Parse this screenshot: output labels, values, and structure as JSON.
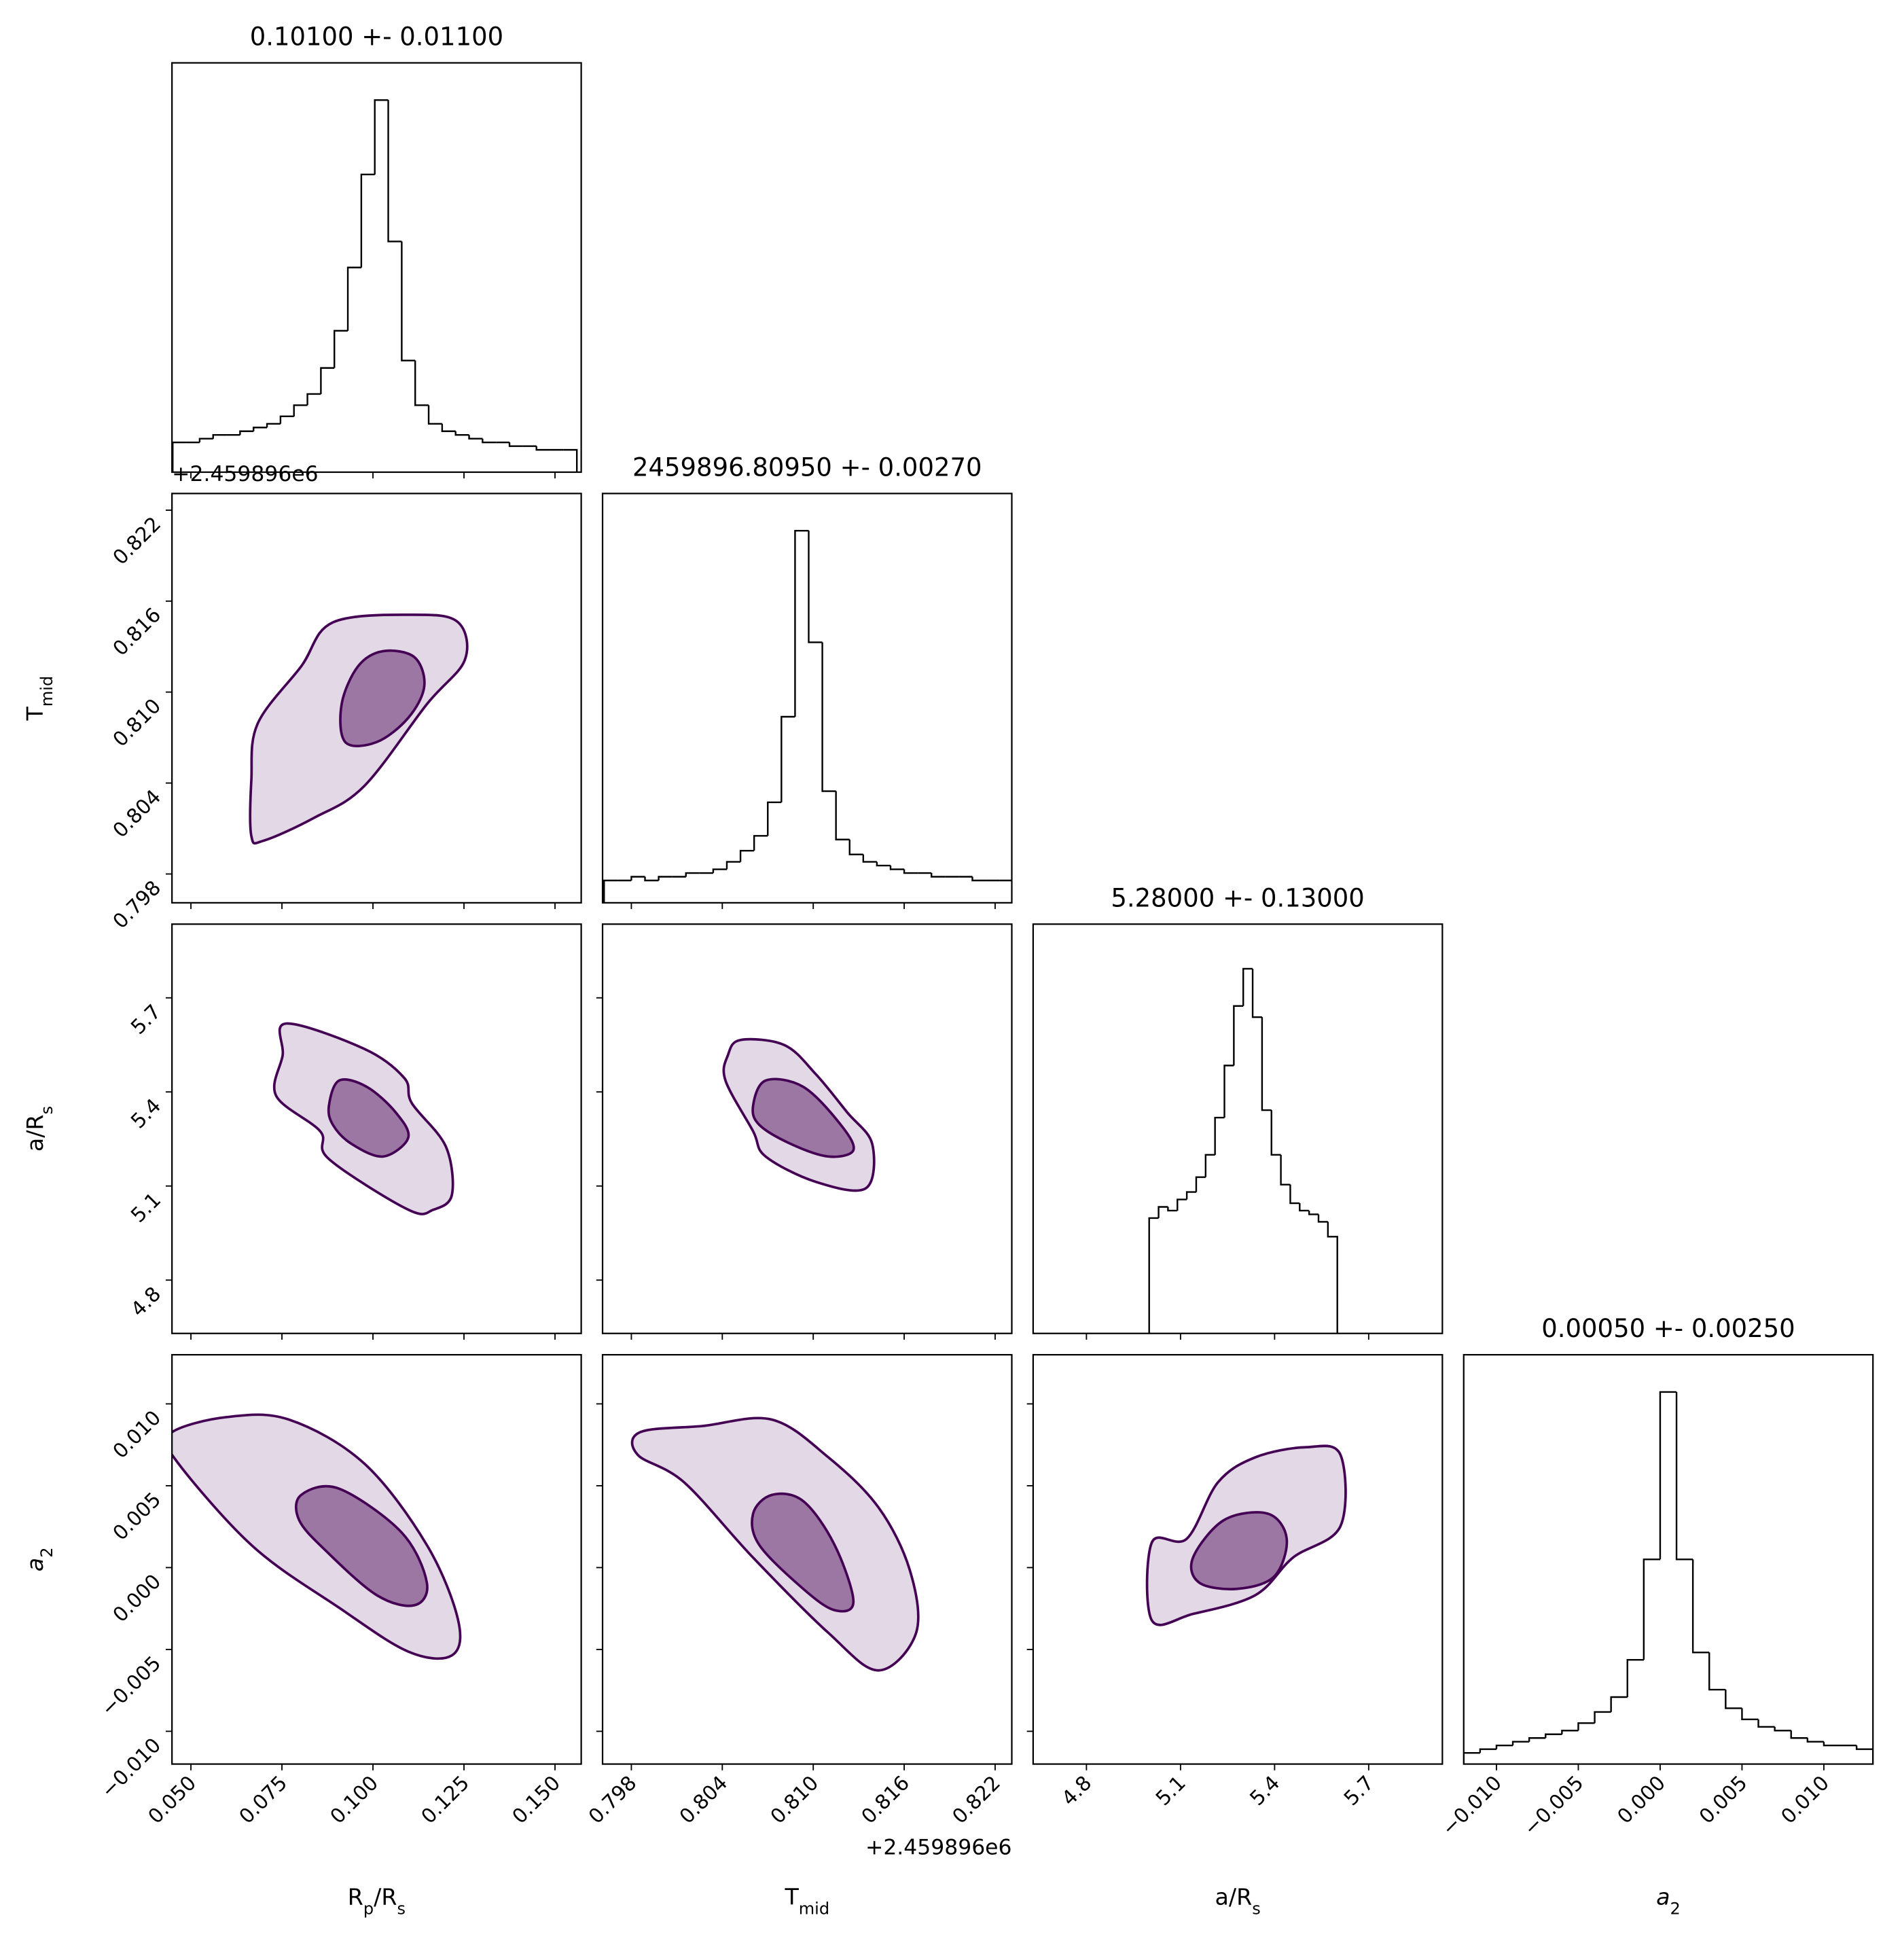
{
  "chart_data": {
    "type": "corner",
    "contour_color": "#440154",
    "hist_color": "#000000",
    "parameters": [
      {
        "label": [
          {
            "text": "R"
          },
          {
            "text": "p",
            "sub": true
          },
          {
            "text": "/R"
          },
          {
            "text": "s",
            "sub": true
          }
        ],
        "title": "0.10100 +- 0.01100",
        "lim": [
          0.0448,
          0.1572
        ],
        "ticks": [
          {
            "value": 0.05,
            "label": "0.050"
          },
          0.075,
          {
            "value": 0.1,
            "label": "0.100"
          },
          0.125,
          {
            "value": 0.15,
            "label": "0.150"
          }
        ],
        "hist": {
          "bins": [
            0.045,
            0.0487,
            0.0524,
            0.0561,
            0.0598,
            0.0635,
            0.0672,
            0.0709,
            0.0746,
            0.0783,
            0.082,
            0.0857,
            0.0894,
            0.0931,
            0.0968,
            0.1005,
            0.1042,
            0.1079,
            0.1116,
            0.1153,
            0.119,
            0.1227,
            0.1264,
            0.1301,
            0.1338,
            0.1375,
            0.1412,
            0.1449,
            0.1486,
            0.1523,
            0.156
          ],
          "values": [
            8,
            8,
            9,
            10,
            10,
            11,
            12,
            13,
            15,
            18,
            21,
            28,
            38,
            55,
            80,
            100,
            62,
            30,
            18,
            13,
            11,
            10,
            9,
            8,
            8,
            7,
            7,
            6,
            6,
            6
          ],
          "ylim": [
            0,
            110
          ]
        },
        "contours": []
      },
      {
        "label": [
          {
            "text": "T"
          },
          {
            "text": "mid",
            "sub": true
          }
        ],
        "title": "2459896.80950 +- 0.00270",
        "offset_text": "+2.459896e6",
        "lim": [
          0.7961,
          0.8231
        ],
        "ticks": [
          0.798,
          0.804,
          {
            "value": 0.81,
            "label": "0.810"
          },
          0.816,
          0.822
        ],
        "hist": {
          "bins": [
            0.7962,
            0.7971,
            0.798,
            0.7989,
            0.7998,
            0.8007,
            0.8016,
            0.8025,
            0.8034,
            0.8043,
            0.8052,
            0.8061,
            0.807,
            0.8079,
            0.8088,
            0.8097,
            0.8106,
            0.8115,
            0.8124,
            0.8133,
            0.8142,
            0.8151,
            0.816,
            0.8169,
            0.8178,
            0.8187,
            0.8196,
            0.8205,
            0.8214,
            0.8223,
            0.8232
          ],
          "values": [
            6,
            6,
            7,
            6,
            7,
            7,
            8,
            8,
            9,
            11,
            14,
            18,
            27,
            50,
            100,
            70,
            30,
            17,
            13,
            11,
            10,
            9,
            8,
            8,
            7,
            7,
            7,
            6,
            6,
            6
          ],
          "ylim": [
            0,
            110
          ]
        },
        "contours": [
          [
            {
              "x": [
                0.0924,
                0.0914,
                0.0959,
                0.1028,
                0.1114,
                0.1141,
                0.1097,
                0.101
              ],
              "y": [
                0.8067,
                0.8092,
                0.8117,
                0.8127,
                0.8123,
                0.8104,
                0.8083,
                0.8067
              ]
            },
            {
              "x": [
                0.0666,
                0.0666,
                0.0683,
                0.0803,
                0.089,
                0.1114,
                0.1234,
                0.1252,
                0.1148,
                0.0976,
                0.0838,
                0.07
              ],
              "y": [
                0.8005,
                0.8042,
                0.8079,
                0.8117,
                0.8146,
                0.8151,
                0.8146,
                0.8121,
                0.8092,
                0.8038,
                0.8017,
                0.8002
              ]
            }
          ]
        ]
      },
      {
        "label": [
          {
            "text": "a/R"
          },
          {
            "text": "s",
            "sub": true
          }
        ],
        "title": "5.28000 +- 0.13000",
        "lim": [
          4.63,
          5.935
        ],
        "ticks": [
          4.8,
          5.1,
          5.4,
          5.7
        ],
        "hist": {
          "bins": [
            5,
            5.03,
            5.06,
            5.09,
            5.12,
            5.15,
            5.18,
            5.21,
            5.24,
            5.27,
            5.3,
            5.33,
            5.36,
            5.39,
            5.42,
            5.45,
            5.48,
            5.51,
            5.54,
            5.57,
            5.6
          ],
          "values": [
            31,
            34,
            33,
            36,
            38,
            42,
            48,
            58,
            72,
            88,
            98,
            85,
            60,
            48,
            40,
            35,
            33,
            32,
            30,
            26
          ],
          "ylim": [
            0,
            110
          ]
        },
        "contours": [
          [
            {
              "x": [
                0.0879,
                0.0907,
                0.0983,
                0.1062,
                0.1097,
                0.1028,
                0.0941,
                0.089
              ],
              "y": [
                5.3556,
                5.4363,
                5.4162,
                5.3354,
                5.2546,
                5.1941,
                5.2344,
                5.295
              ]
            },
            {
              "x": [
                0.0762,
                0.0976,
                0.1086,
                0.1107,
                0.12,
                0.1217,
                0.1166,
                0.1097,
                0.0879,
                0.0855,
                0.0734,
                0.0752
              ],
              "y": [
                5.6181,
                5.5373,
                5.4444,
                5.3637,
                5.2264,
                5.0729,
                5.0245,
                5.0245,
                5.186,
                5.2748,
                5.3879,
                5.5171
              ]
            }
          ],
          [
            {
              "x": [
                0.80603,
                0.80686,
                0.80934,
                0.81182,
                0.81265,
                0.81099,
                0.80851,
                0.80644
              ],
              "y": [
                5.3556,
                5.4363,
                5.4162,
                5.295,
                5.2143,
                5.1941,
                5.2344,
                5.295
              ]
            },
            {
              "x": [
                0.80437,
                0.8052,
                0.8081,
                0.81017,
                0.81223,
                0.81389,
                0.81348,
                0.81017,
                0.80686,
                0.80603,
                0.80421
              ],
              "y": [
                5.5171,
                5.5656,
                5.5494,
                5.4565,
                5.3354,
                5.2344,
                5.0931,
                5.1133,
                5.1941,
                5.2748,
                5.4363
              ]
            }
          ]
        ]
      },
      {
        "label": [
          {
            "text": "a",
            "italic": true
          },
          {
            "text": "2",
            "sub": true
          }
        ],
        "title": "0.00050 +- 0.00250",
        "lim": [
          -0.012,
          0.013
        ],
        "ticks": [
          {
            "value": -0.01,
            "label": "−0.010"
          },
          {
            "value": -0.005,
            "label": "−0.005"
          },
          {
            "value": 0,
            "label": "0.000"
          },
          {
            "value": 0.005,
            "label": "0.005"
          },
          {
            "value": 0.01,
            "label": "0.010"
          }
        ],
        "hist": {
          "bins": [
            -0.012,
            -0.011,
            -0.01,
            -0.009,
            -0.008,
            -0.007,
            -0.006,
            -0.005,
            -0.004,
            -0.003,
            -0.002,
            -0.001,
            0,
            0.001,
            0.002,
            0.003,
            0.004,
            0.005,
            0.006,
            0.007,
            0.008,
            0.009,
            0.01,
            0.011,
            0.012,
            0.013
          ],
          "values": [
            3,
            4,
            5,
            6,
            7,
            8,
            9,
            11,
            14,
            18,
            28,
            55,
            100,
            55,
            30,
            20,
            15,
            12,
            10,
            9,
            7,
            6,
            5,
            5,
            4
          ],
          "ylim": [
            0,
            110
          ]
        },
        "contours": [
          [
            {
              "x": [
                0.0803,
                0.0907,
                0.1079,
                0.1148,
                0.1114,
                0.101,
                0.0872,
                0.0797
              ],
              "y": [
                0.00444,
                0.00482,
                0.00214,
                -0.00092,
                -0.0023,
                -0.00168,
                0.001,
                0.00291
              ]
            },
            {
              "x": [
                0.0448,
                0.0597,
                0.0769,
                0.0976,
                0.1148,
                0.1234,
                0.1217,
                0.1097,
                0.0907,
                0.0666,
                0.0448
              ],
              "y": [
                0.00827,
                0.00919,
                0.00904,
                0.00636,
                0.00138,
                -0.00322,
                -0.00536,
                -0.00513,
                -0.00245,
                0.00138,
                0.00689
              ]
            }
          ],
          [
            {
              "x": [
                0.80603,
                0.80727,
                0.80934,
                0.81141,
                0.81265,
                0.81141,
                0.80934,
                0.80644
              ],
              "y": [
                0.00329,
                0.00444,
                0.00406,
                0.00138,
                -0.00207,
                -0.0026,
                -0.0013,
                0.00138
              ]
            },
            {
              "x": [
                0.79858,
                0.80272,
                0.80727,
                0.81099,
                0.8143,
                0.81637,
                0.81679,
                0.8143,
                0.81099,
                0.80603,
                0.80148,
                0.79842
              ],
              "y": [
                0.00827,
                0.00865,
                0.00904,
                0.00674,
                0.00368,
                -0.00015,
                -0.00398,
                -0.00628,
                -0.00398,
                0.00061,
                0.00521,
                0.00689
              ]
            }
          ],
          [
            {
              "x": [
                5.1398,
                5.2394,
                5.3789,
                5.4386,
                5.3988,
                5.2793,
                5.1598
              ],
              "y": [
                0.00061,
                0.00291,
                0.00329,
                0.00176,
                -0.00054,
                -0.0013,
                -0.00092
              ]
            },
            {
              "x": [
                5.0084,
                5.1199,
                5.2195,
                5.339,
                5.4984,
                5.61,
                5.61,
                5.4586,
                5.339,
                5.1398,
                5.0084
              ],
              "y": [
                0.00153,
                0.00176,
                0.00521,
                0.00674,
                0.00735,
                0.00689,
                0.00253,
                0.00061,
                -0.00168,
                -0.00283,
                -0.00322
              ]
            }
          ]
        ]
      }
    ]
  }
}
